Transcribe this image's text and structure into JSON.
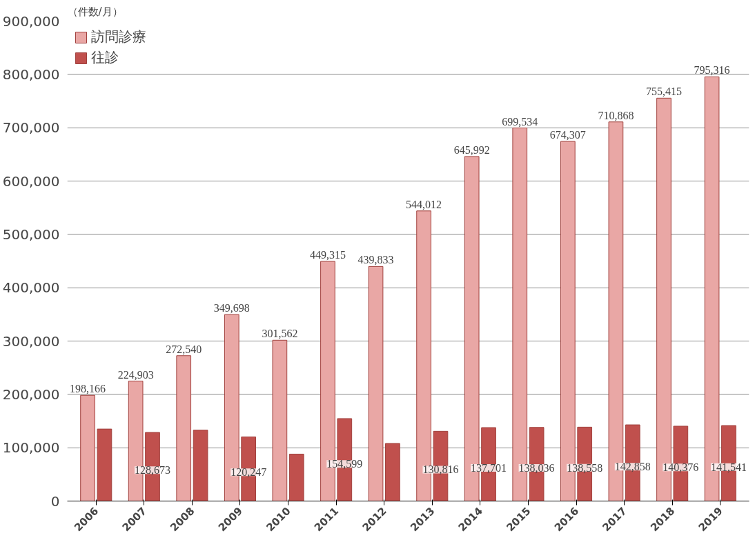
{
  "chart_data": {
    "type": "bar",
    "ylabel": "（件数/月）",
    "categories": [
      "2006",
      "2007",
      "2008",
      "2009",
      "2010",
      "2011",
      "2012",
      "2013",
      "2014",
      "2015",
      "2016",
      "2017",
      "2018",
      "2019"
    ],
    "series": [
      {
        "name": "訪問診療",
        "color": "#e9a7a5",
        "values": [
          198166,
          224903,
          272540,
          349698,
          301562,
          449315,
          439833,
          544012,
          645992,
          699534,
          674307,
          710868,
          755415,
          795316
        ],
        "value_labels": [
          "198,166",
          "224,903",
          "272,540",
          "349,698",
          "301,562",
          "449,315",
          "439,833",
          "544,012",
          "645,992",
          "699,534",
          "674,307",
          "710,868",
          "755,415",
          "795,316"
        ]
      },
      {
        "name": "往診",
        "color": "#c0504d",
        "values": [
          135000,
          128673,
          133000,
          120247,
          88000,
          154599,
          108000,
          130816,
          137701,
          138036,
          138558,
          142858,
          140376,
          141541
        ],
        "value_labels": [
          null,
          "128,673",
          null,
          "120,247",
          null,
          "154,599",
          null,
          "130,816",
          "137,701",
          "138,036",
          "138,558",
          "142,858",
          "140,376",
          "141,541"
        ]
      }
    ],
    "ylim": [
      0,
      900000
    ],
    "yticks": [
      {
        "value": 0,
        "label": "0"
      },
      {
        "value": 100000,
        "label": "100,000"
      },
      {
        "value": 200000,
        "label": "200,000"
      },
      {
        "value": 300000,
        "label": "300,000"
      },
      {
        "value": 400000,
        "label": "400,000"
      },
      {
        "value": 500000,
        "label": "500,000"
      },
      {
        "value": 600000,
        "label": "600,000"
      },
      {
        "value": 700000,
        "label": "700,000"
      },
      {
        "value": 800000,
        "label": "800,000"
      },
      {
        "value": 900000,
        "label": "900,000"
      }
    ],
    "grid": "y",
    "legend": "top left"
  }
}
